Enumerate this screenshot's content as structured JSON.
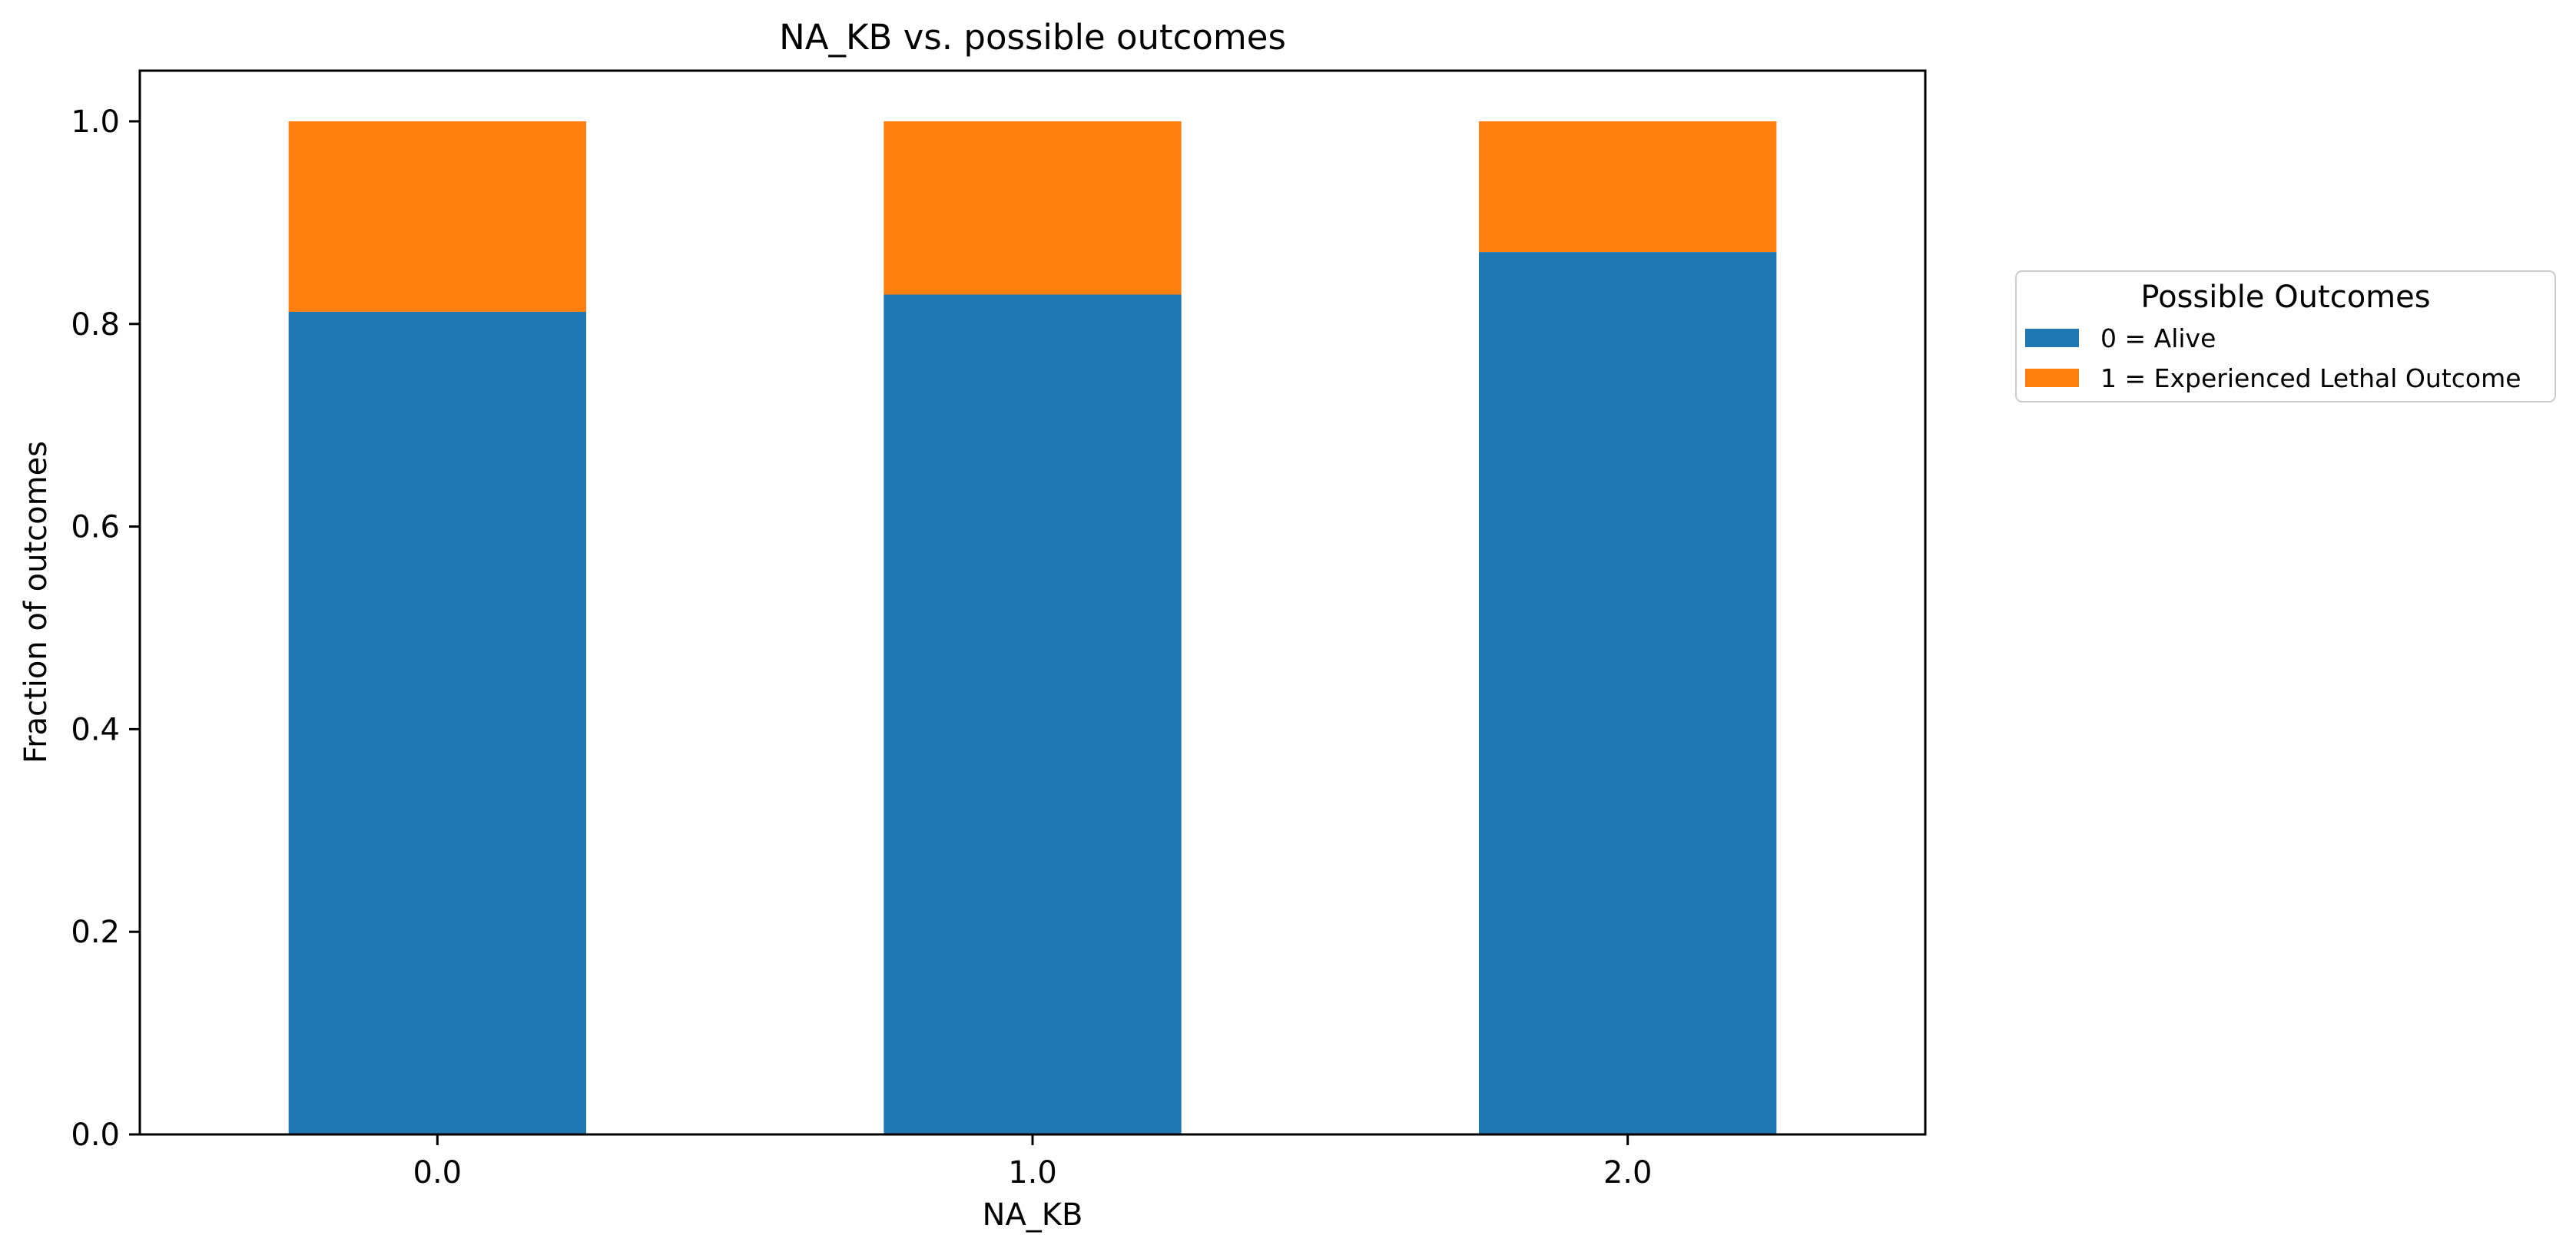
{
  "chart_data": {
    "type": "bar",
    "stacked": true,
    "title": "NA_KB vs. possible outcomes",
    "xlabel": "NA_KB",
    "ylabel": "Fraction of outcomes",
    "categories": [
      "0.0",
      "1.0",
      "2.0"
    ],
    "series": [
      {
        "name": "0 = Alive",
        "values": [
          0.812,
          0.829,
          0.871
        ],
        "color": "#1f77b4"
      },
      {
        "name": "1 = Experienced Lethal Outcome",
        "values": [
          0.188,
          0.171,
          0.129
        ],
        "color": "#ff7f0e"
      }
    ],
    "ylim": [
      0,
      1.05
    ],
    "yticks": [
      "0.0",
      "0.2",
      "0.4",
      "0.6",
      "0.8",
      "1.0"
    ],
    "grid": false,
    "legend": {
      "title": "Possible Outcomes",
      "placement": "outside-right"
    }
  }
}
